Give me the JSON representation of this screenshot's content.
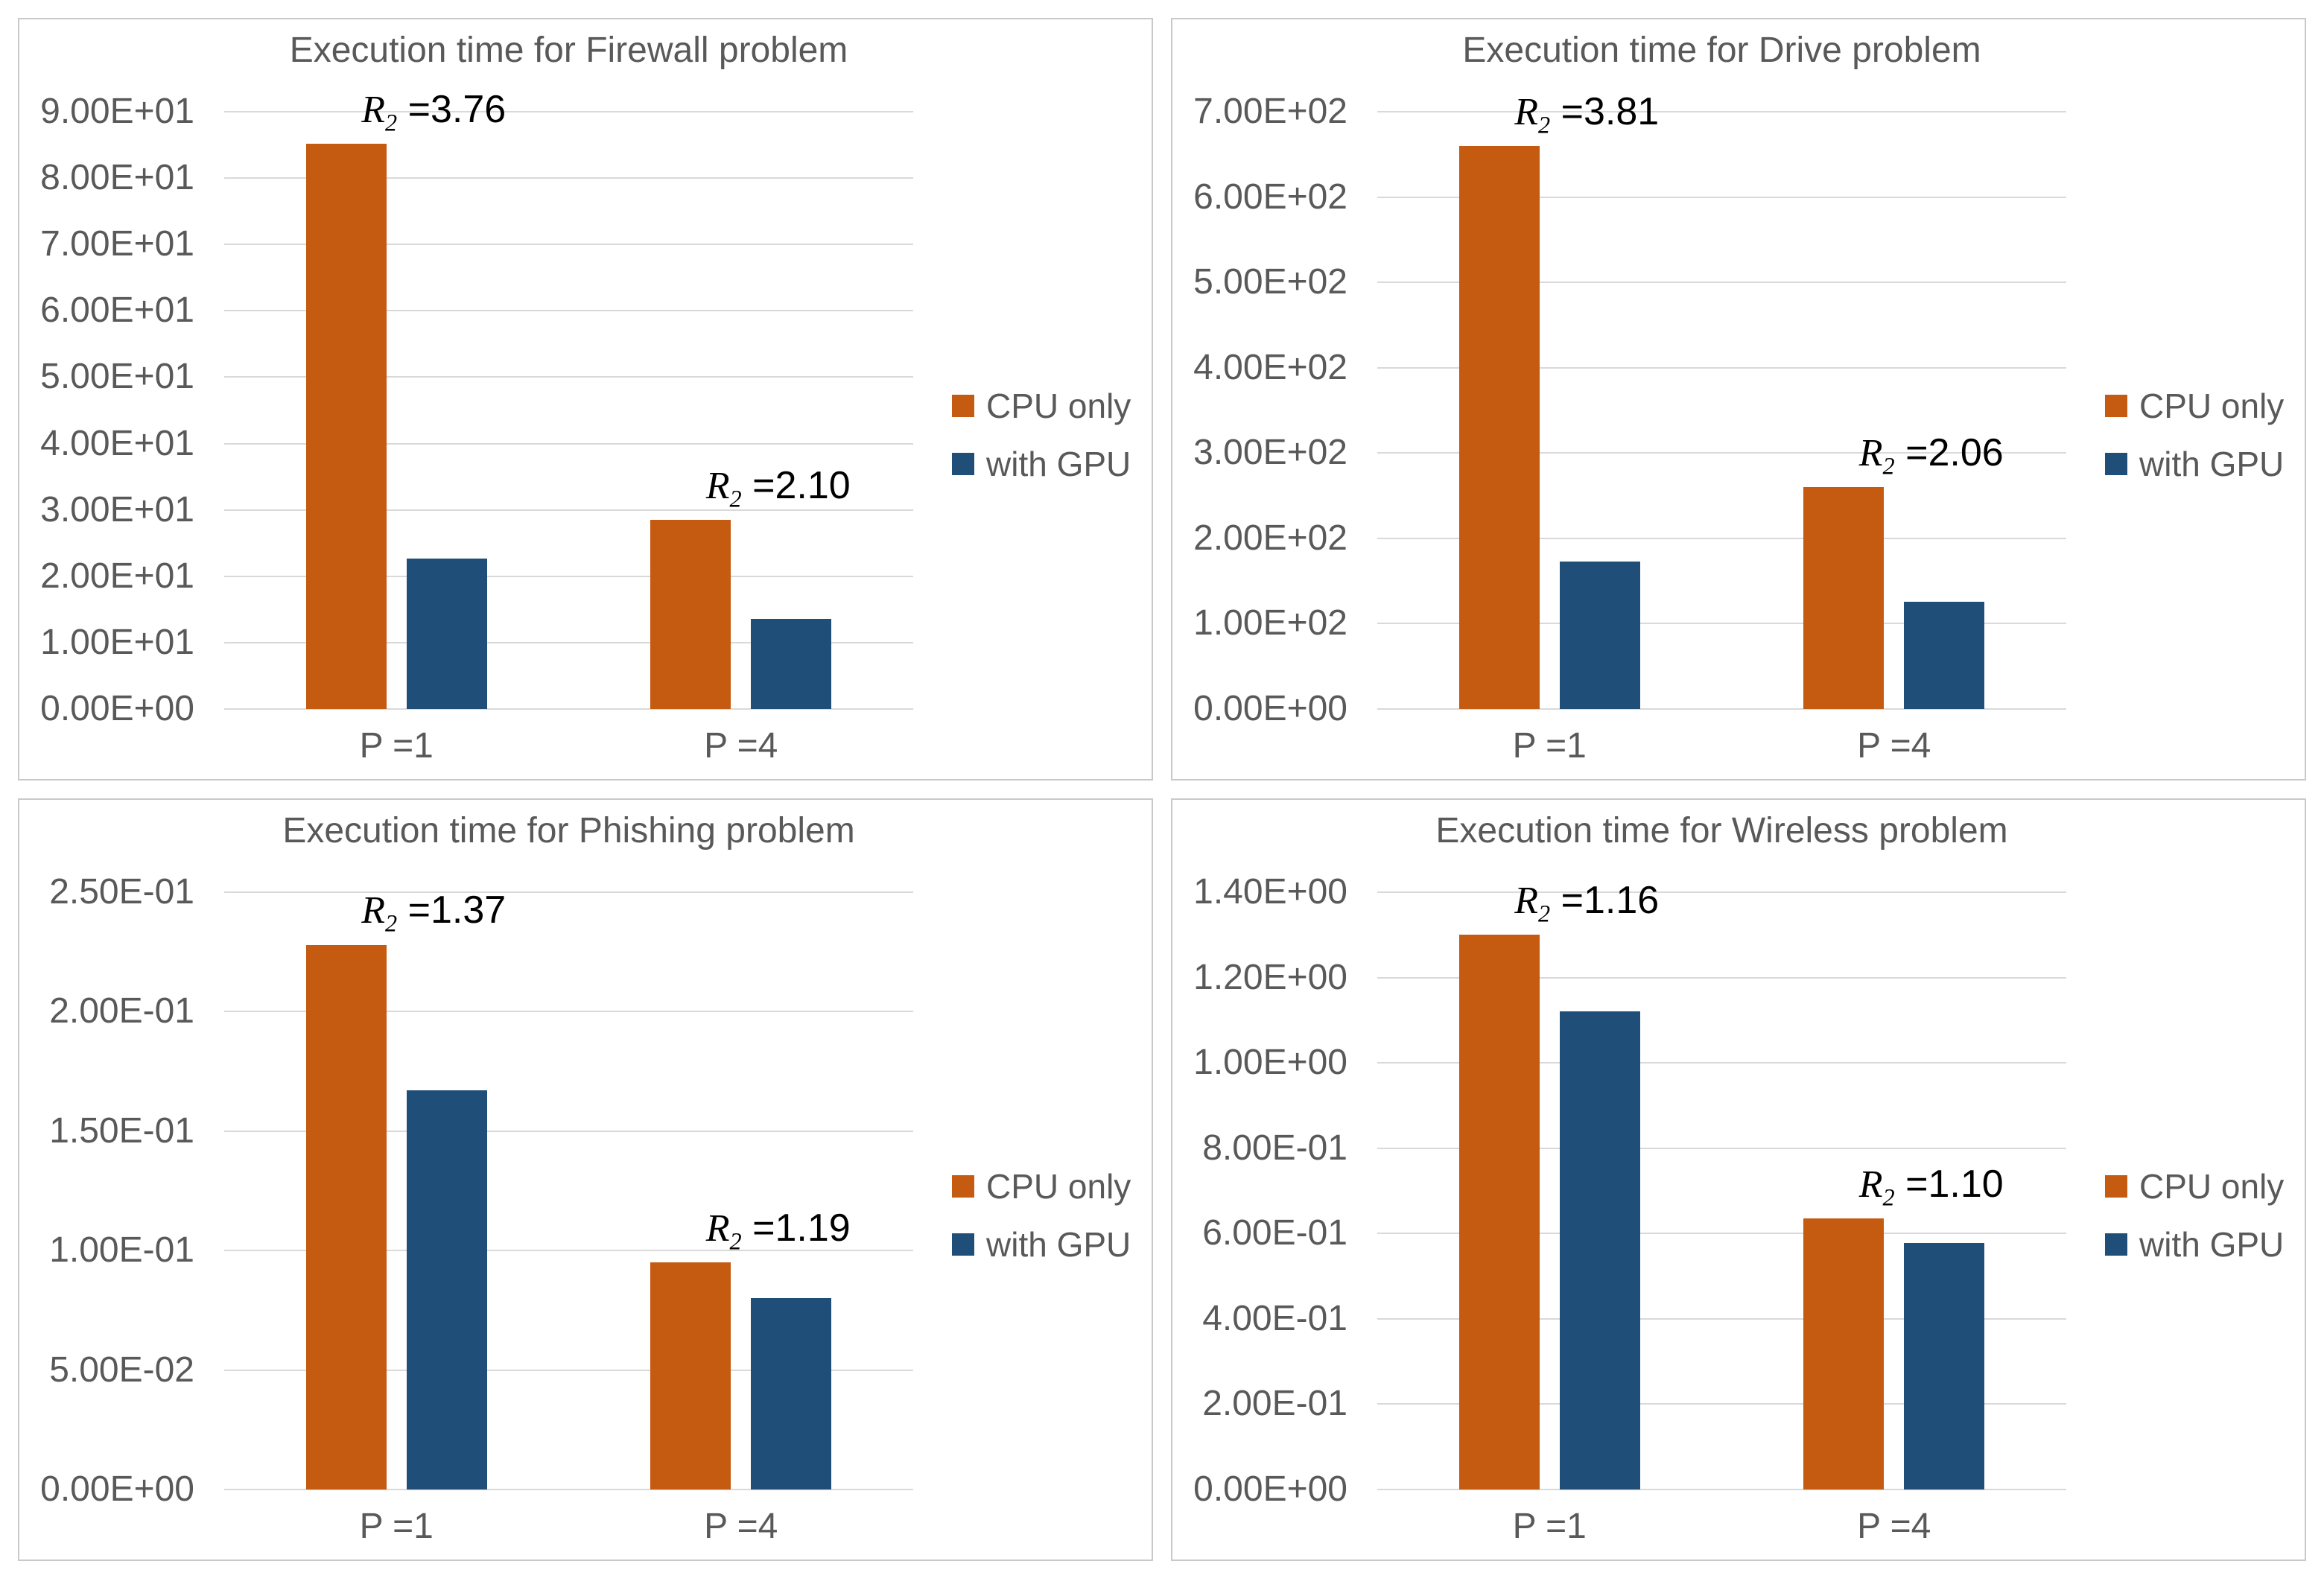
{
  "styles": {
    "grid_color": "#D9D9D9",
    "panel_border_color": "#C9C9C9",
    "text_color": "#595959",
    "annotation_color": "#000000",
    "background": "#FFFFFF"
  },
  "legend": {
    "position": "right",
    "items": [
      {
        "label": "CPU only",
        "color": "#C55A11"
      },
      {
        "label": "with GPU",
        "color": "#1F4E79"
      }
    ]
  },
  "annotation": {
    "base": "R",
    "subscript": "2"
  },
  "chart_data": [
    {
      "type": "bar",
      "title": "Execution time for Firewall problem",
      "categories": [
        "P =1",
        "P =4"
      ],
      "y_ticks": [
        "9.00E+01",
        "8.00E+01",
        "7.00E+01",
        "6.00E+01",
        "5.00E+01",
        "4.00E+01",
        "3.00E+01",
        "2.00E+01",
        "1.00E+01",
        "0.00E+00"
      ],
      "y_max": 90,
      "ylim": [
        0,
        90
      ],
      "grid": "horizontal",
      "legend_position": "right",
      "series": [
        {
          "name": "CPU only",
          "values": [
            85.2,
            28.5
          ]
        },
        {
          "name": "with GPU",
          "values": [
            22.7,
            13.6
          ]
        }
      ],
      "annotations": [
        " =3.76",
        " =2.10"
      ]
    },
    {
      "type": "bar",
      "title": "Execution time for Drive problem",
      "categories": [
        "P =1",
        "P =4"
      ],
      "y_ticks": [
        "7.00E+02",
        "6.00E+02",
        "5.00E+02",
        "4.00E+02",
        "3.00E+02",
        "2.00E+02",
        "1.00E+02",
        "0.00E+00"
      ],
      "y_max": 700,
      "ylim": [
        0,
        700
      ],
      "grid": "horizontal",
      "legend_position": "right",
      "series": [
        {
          "name": "CPU only",
          "values": [
            660,
            260
          ]
        },
        {
          "name": "with GPU",
          "values": [
            173,
            126
          ]
        }
      ],
      "annotations": [
        " =3.81",
        " =2.06"
      ]
    },
    {
      "type": "bar",
      "title": "Execution time for Phishing problem",
      "categories": [
        "P =1",
        "P =4"
      ],
      "y_ticks": [
        "2.50E-01",
        "2.00E-01",
        "1.50E-01",
        "1.00E-01",
        "5.00E-02",
        "0.00E+00"
      ],
      "y_max": 0.25,
      "ylim": [
        0,
        0.25
      ],
      "grid": "horizontal",
      "legend_position": "right",
      "series": [
        {
          "name": "CPU only",
          "values": [
            0.228,
            0.095
          ]
        },
        {
          "name": "with GPU",
          "values": [
            0.167,
            0.08
          ]
        }
      ],
      "annotations": [
        " =1.37",
        " =1.19"
      ]
    },
    {
      "type": "bar",
      "title": "Execution time for Wireless problem",
      "categories": [
        "P =1",
        "P =4"
      ],
      "y_ticks": [
        "1.40E+00",
        "1.20E+00",
        "1.00E+00",
        "8.00E-01",
        "6.00E-01",
        "4.00E-01",
        "2.00E-01",
        "0.00E+00"
      ],
      "y_max": 1.4,
      "ylim": [
        0,
        1.4
      ],
      "grid": "horizontal",
      "legend_position": "right",
      "series": [
        {
          "name": "CPU only",
          "values": [
            1.3,
            0.635
          ]
        },
        {
          "name": "with GPU",
          "values": [
            1.12,
            0.578
          ]
        }
      ],
      "annotations": [
        " =1.16",
        " =1.10"
      ]
    }
  ]
}
